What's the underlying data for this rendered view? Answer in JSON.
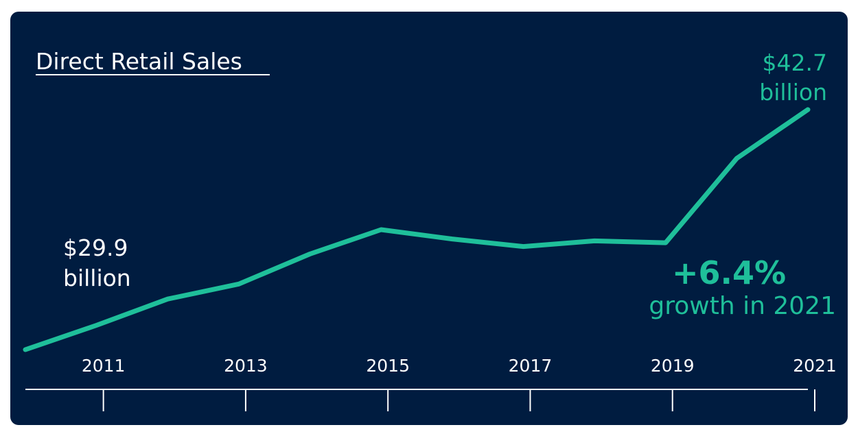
{
  "colors": {
    "background": "#001c40",
    "accent": "#1fbf9a",
    "text": "#ffffff"
  },
  "chart_data": {
    "type": "line",
    "title": "Direct Retail Sales",
    "xlabel": "",
    "ylabel": "",
    "x": [
      2010,
      2011,
      2012,
      2013,
      2014,
      2015,
      2016,
      2017,
      2018,
      2019,
      2020,
      2021
    ],
    "series": [
      {
        "values": [
          29.9,
          31.2,
          32.6,
          33.4,
          35.0,
          36.3,
          35.8,
          35.4,
          35.7,
          35.6,
          40.1,
          42.7
        ]
      }
    ],
    "ylim": [
      28,
      45
    ],
    "x_tick_labels": [
      "2011",
      "2013",
      "2015",
      "2017",
      "2019",
      "2021"
    ],
    "x_ticks": [
      2011,
      2013,
      2015,
      2017,
      2019,
      2021
    ],
    "grid": false,
    "legend": "none",
    "annotations": {
      "start_value": "$29.9",
      "start_unit": "billion",
      "end_value": "$42.7",
      "end_unit": "billion",
      "growth_value": "+6.4%",
      "growth_text": "growth in 2021"
    }
  }
}
